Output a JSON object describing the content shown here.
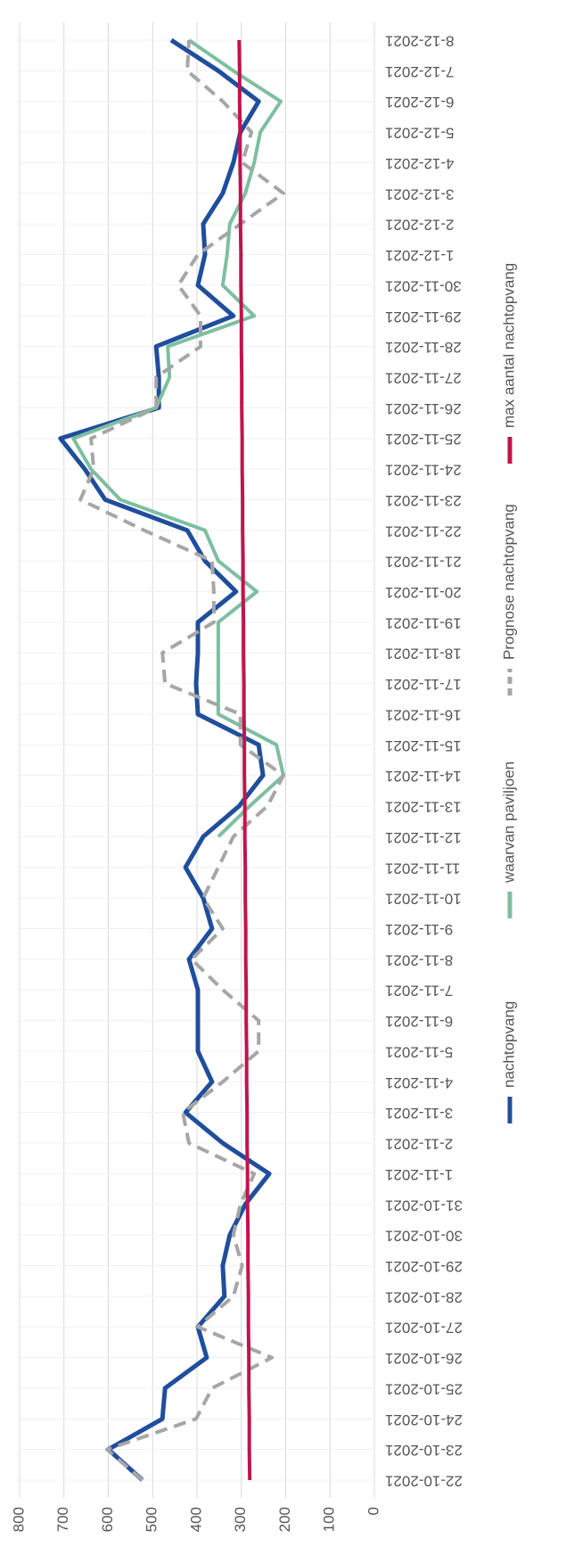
{
  "chart_data": {
    "type": "line",
    "categories": [
      "22-10-2021",
      "23-10-2021",
      "24-10-2021",
      "25-10-2021",
      "26-10-2021",
      "27-10-2021",
      "28-10-2021",
      "29-10-2021",
      "30-10-2021",
      "31-10-2021",
      "1-11-2021",
      "2-11-2021",
      "3-11-2021",
      "4-11-2021",
      "5-11-2021",
      "6-11-2021",
      "7-11-2021",
      "8-11-2021",
      "9-11-2021",
      "10-11-2021",
      "11-11-2021",
      "12-11-2021",
      "13-11-2021",
      "14-11-2021",
      "15-11-2021",
      "16-11-2021",
      "17-11-2021",
      "18-11-2021",
      "19-11-2021",
      "20-11-2021",
      "21-11-2021",
      "22-11-2021",
      "23-11-2021",
      "24-11-2021",
      "25-11-2021",
      "26-11-2021",
      "27-11-2021",
      "28-11-2021",
      "29-11-2021",
      "30-11-2021",
      "1-12-2021",
      "2-12-2021",
      "3-12-2021",
      "4-12-2021",
      "5-12-2021",
      "6-12-2021",
      "7-12-2021",
      "8-12-2021"
    ],
    "series": [
      {
        "name": "nachtopvang",
        "color": "#1f4e9c",
        "dashed": false,
        "values": [
          523,
          600,
          478,
          472,
          378,
          398,
          338,
          342,
          326,
          291,
          237,
          342,
          426,
          366,
          398,
          398,
          398,
          418,
          366,
          386,
          426,
          386,
          305,
          251,
          261,
          398,
          402,
          398,
          398,
          312,
          382,
          422,
          607,
          653,
          708,
          486,
          486,
          492,
          318,
          398,
          382,
          386,
          342,
          318,
          302,
          261,
          352,
          458
        ]
      },
      {
        "name": "waarvan paviljoen",
        "color": "#7dbfa0",
        "dashed": false,
        "values": [
          null,
          null,
          null,
          null,
          null,
          null,
          null,
          null,
          null,
          null,
          null,
          null,
          null,
          null,
          null,
          null,
          null,
          null,
          null,
          null,
          null,
          352,
          281,
          205,
          221,
          352,
          352,
          352,
          352,
          265,
          352,
          382,
          573,
          639,
          679,
          492,
          462,
          466,
          271,
          342,
          332,
          326,
          291,
          271,
          257,
          211,
          318,
          418
        ]
      },
      {
        "name": "Prognose nachtopvang",
        "color": "#a6a6a6",
        "dashed": true,
        "values": [
          523,
          603,
          402,
          366,
          231,
          398,
          318,
          298,
          318,
          302,
          271,
          418,
          432,
          342,
          261,
          261,
          342,
          412,
          342,
          386,
          352,
          318,
          241,
          205,
          302,
          302,
          472,
          478,
          362,
          362,
          366,
          519,
          663,
          633,
          639,
          492,
          492,
          392,
          392,
          442,
          398,
          302,
          205,
          298,
          277,
          342,
          422,
          418
        ]
      },
      {
        "name": "max aantal nachtopvang",
        "color": "#c0144c",
        "dashed": false,
        "values": [
          281,
          282,
          282,
          283,
          283,
          284,
          284,
          285,
          285,
          286,
          286,
          287,
          287,
          288,
          288,
          289,
          289,
          290,
          290,
          291,
          291,
          292,
          292,
          293,
          293,
          294,
          294,
          295,
          295,
          296,
          296,
          297,
          297,
          298,
          298,
          299,
          299,
          300,
          300,
          301,
          301,
          302,
          302,
          303,
          303,
          304,
          304,
          305
        ]
      }
    ],
    "ylim": [
      0,
      800
    ],
    "yticks": [
      0,
      100,
      200,
      300,
      400,
      500,
      600,
      700,
      800
    ],
    "grid": true,
    "legend": "bottom",
    "rotation": -90
  }
}
